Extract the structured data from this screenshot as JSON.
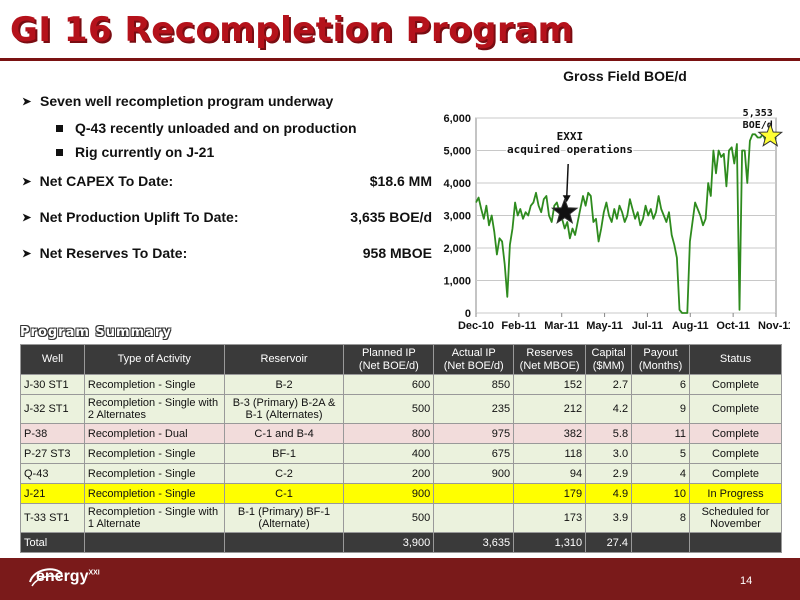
{
  "title": "GI 16 Recompletion Program",
  "bullets": {
    "main": "Seven well recompletion program underway",
    "sub": [
      "Q-43 recently unloaded and on production",
      "Rig currently on J-21"
    ],
    "kv": [
      {
        "label": "Net CAPEX To Date:",
        "value": "$18.6 MM"
      },
      {
        "label": "Net Production Uplift To Date:",
        "value": "3,635 BOE/d"
      },
      {
        "label": "Net Reserves To Date:",
        "value": "958 MBOE"
      }
    ]
  },
  "chart_data": {
    "type": "line",
    "title": "Gross Field BOE/d",
    "xlabel": "",
    "ylabel": "",
    "ylim": [
      0,
      6000
    ],
    "yticks": [
      "0",
      "1,000",
      "2,000",
      "3,000",
      "4,000",
      "5,000",
      "6,000"
    ],
    "xticks": [
      "Dec-10",
      "Feb-11",
      "Mar-11",
      "May-11",
      "Jul-11",
      "Aug-11",
      "Oct-11",
      "Nov-11"
    ],
    "xrange_days": [
      0,
      345
    ],
    "grid": true,
    "color": "#2e8b1e",
    "series": [
      {
        "x": [
          0,
          3,
          6,
          9,
          12,
          15,
          18,
          21,
          24,
          27,
          30,
          33,
          36,
          39,
          42,
          45,
          48,
          51,
          54,
          57,
          60,
          63,
          66,
          69,
          72,
          75,
          78,
          81,
          84,
          87,
          90,
          93,
          96,
          99,
          102,
          105,
          108,
          111,
          114,
          117,
          120,
          123,
          126,
          129,
          132,
          135,
          138,
          141,
          144,
          147,
          150,
          153,
          156,
          159,
          162,
          165,
          168,
          171,
          174,
          177,
          180,
          183,
          186,
          189,
          192,
          195,
          198,
          201,
          204,
          207,
          210,
          213,
          216,
          219,
          222,
          225,
          228,
          231,
          234,
          237,
          240,
          243,
          246,
          249,
          252,
          255,
          258,
          261,
          264,
          267,
          270,
          273,
          276,
          279,
          282,
          285,
          288,
          291,
          294,
          297,
          300,
          303,
          306,
          309,
          312,
          315,
          318,
          321,
          324,
          327,
          330,
          333,
          336,
          339,
          342,
          345
        ],
        "y": [
          3400,
          3550,
          3200,
          2900,
          3300,
          2700,
          3000,
          2500,
          1800,
          2300,
          2200,
          1500,
          500,
          2100,
          2600,
          3400,
          3000,
          3200,
          2900,
          3100,
          3000,
          3300,
          3400,
          3700,
          3300,
          3100,
          3500,
          3600,
          3000,
          2800,
          3300,
          3400,
          3100,
          2900,
          2600,
          2800,
          2300,
          2600,
          2400,
          2800,
          3200,
          3600,
          3300,
          3700,
          3600,
          2800,
          2900,
          2200,
          2600,
          3100,
          3400,
          3000,
          2800,
          3200,
          2900,
          3300,
          3100,
          2800,
          3000,
          3500,
          3200,
          2900,
          3100,
          2700,
          2900,
          3300,
          3000,
          3200,
          2900,
          3100,
          3600,
          3200,
          3000,
          2800,
          3100,
          2400,
          2100,
          1700,
          100,
          0,
          0,
          0,
          2200,
          2800,
          3400,
          3200,
          3000,
          2700,
          2900,
          4000,
          3600,
          5000,
          4300,
          5000,
          4800,
          4900,
          3900,
          5000,
          5100,
          4600,
          5200,
          100,
          5000,
          5000,
          4000,
          5300,
          5500,
          5500,
          5400,
          5400,
          5500,
          5300,
          5500,
          5500,
          5500,
          5353
        ]
      }
    ],
    "annotations": [
      {
        "text": "EXXI\nacquired operations",
        "x_day": 102,
        "y": 3100,
        "marker": "black-star"
      },
      {
        "text": "5,353\nBOE/d",
        "x_day": 343,
        "y": 5353,
        "marker": "yellow-star"
      }
    ]
  },
  "program_summary_title": "Program Summary",
  "table": {
    "headers": [
      "Well",
      "Type of Activity",
      "Reservoir",
      "Planned IP (Net BOE/d)",
      "Actual IP (Net BOE/d)",
      "Reserves (Net MBOE)",
      "Capital ($MM)",
      "Payout (Months)",
      "Status"
    ],
    "header_lines": [
      [
        "Well"
      ],
      [
        "Type of Activity"
      ],
      [
        "Reservoir"
      ],
      [
        "Planned IP",
        "(Net BOE/d)"
      ],
      [
        "Actual IP",
        "(Net BOE/d)"
      ],
      [
        "Reserves",
        "(Net MBOE)"
      ],
      [
        "Capital",
        "($MM)"
      ],
      [
        "Payout",
        "(Months)"
      ],
      [
        "Status"
      ]
    ],
    "rows": [
      {
        "style": "green",
        "cells": [
          "J-30 ST1",
          "Recompletion - Single",
          "B-2",
          "600",
          "850",
          "152",
          "2.7",
          "6",
          "Complete"
        ]
      },
      {
        "style": "green",
        "cells": [
          "J-32 ST1",
          "Recompletion - Single with 2 Alternates",
          "B-3 (Primary) B-2A & B-1 (Alternates)",
          "500",
          "235",
          "212",
          "4.2",
          "9",
          "Complete"
        ]
      },
      {
        "style": "pink",
        "cells": [
          "P-38",
          "Recompletion - Dual",
          "C-1 and B-4",
          "800",
          "975",
          "382",
          "5.8",
          "11",
          "Complete"
        ]
      },
      {
        "style": "green",
        "cells": [
          "P-27 ST3",
          "Recompletion - Single",
          "BF-1",
          "400",
          "675",
          "118",
          "3.0",
          "5",
          "Complete"
        ]
      },
      {
        "style": "green",
        "cells": [
          "Q-43",
          "Recompletion - Single",
          "C-2",
          "200",
          "900",
          "94",
          "2.9",
          "4",
          "Complete"
        ]
      },
      {
        "style": "yellow",
        "cells": [
          "J-21",
          "Recompletion - Single",
          "C-1",
          "900",
          "",
          "179",
          "4.9",
          "10",
          "In Progress"
        ]
      },
      {
        "style": "green",
        "cells": [
          "T-33 ST1",
          "Recompletion - Single with 1 Alternate",
          "B-1 (Primary) BF-1 (Alternate)",
          "500",
          "",
          "173",
          "3.9",
          "8",
          "Scheduled for November"
        ]
      }
    ],
    "total": [
      "Total",
      "",
      "",
      "3,900",
      "3,635",
      "1,310",
      "27.4",
      "",
      ""
    ]
  },
  "footer": {
    "logo_text": "energy",
    "logo_sup": "XXI",
    "page_number": "14"
  }
}
